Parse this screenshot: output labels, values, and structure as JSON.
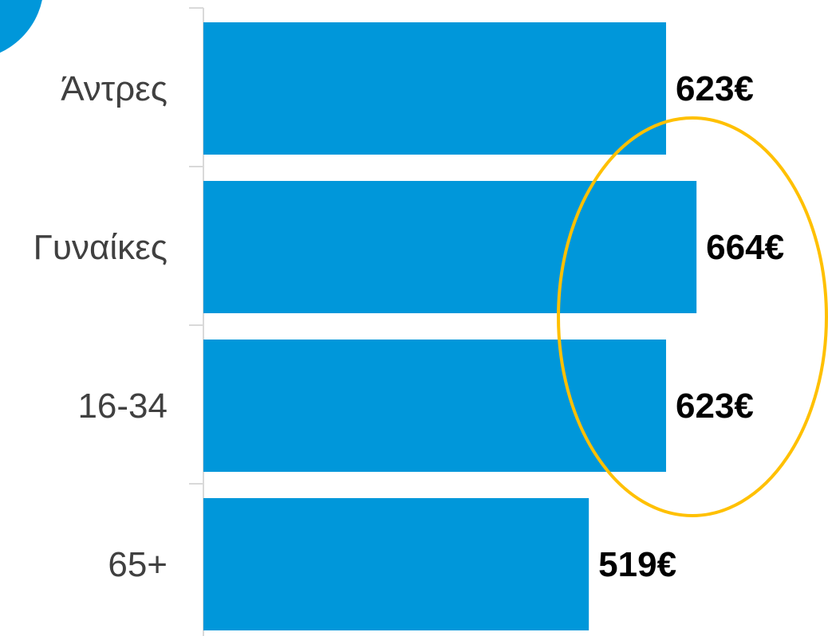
{
  "chart_data": {
    "type": "bar",
    "orientation": "horizontal",
    "categories": [
      "Άντρες",
      "Γυναίκες",
      "16-34",
      "65+"
    ],
    "values": [
      623,
      664,
      623,
      519
    ],
    "value_labels": [
      "623€",
      "664€",
      "623€",
      "519€"
    ],
    "xlim": [
      0,
      730
    ],
    "grid": false,
    "legend": "none",
    "highlight": {
      "shape": "ellipse",
      "categories": [
        "Γυναίκες",
        "16-34"
      ],
      "color": "#FFC000"
    }
  },
  "colors": {
    "bar": "#0097DA",
    "axis": "#D9D9D9",
    "category_text": "#404040",
    "value_text": "#000000",
    "highlight": "#FFC000",
    "corner_shape": "#0097DA"
  }
}
